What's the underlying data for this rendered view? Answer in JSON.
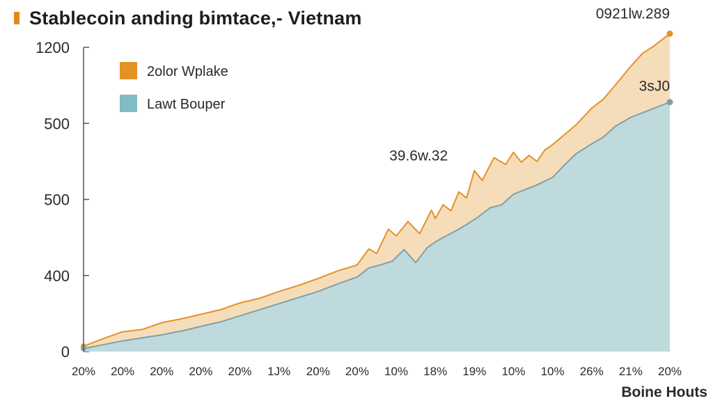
{
  "title": "Stablecoin anding bimtace,- Vietnam",
  "chart_data": {
    "type": "area",
    "title": "Stablecoin anding bimtace,- Vietnam",
    "xlabel": "Boine Houts",
    "ylabel": "",
    "y_tick_labels": [
      "0",
      "400",
      "500",
      "500",
      "1200"
    ],
    "x_tick_labels": [
      "20%",
      "20%",
      "20%",
      "20%",
      "20%",
      "1J%",
      "20%",
      "20%",
      "10%",
      "18%",
      "19%",
      "10%",
      "10%",
      "26%",
      "21%",
      "20%"
    ],
    "ylim": [
      0,
      4
    ],
    "legend": [
      {
        "name": "2olor Wplake",
        "color": "#e39226"
      },
      {
        "name": "Lawt Bouper",
        "color": "#7fbcc4"
      }
    ],
    "series": [
      {
        "name": "2olor Wplake",
        "color": "#e39226",
        "fill": "#f5d9b3",
        "x": [
          0,
          0.5,
          1,
          1.5,
          2,
          2.5,
          3,
          3.5,
          4,
          4.5,
          5,
          5.5,
          6,
          6.5,
          7,
          7.3,
          7.5,
          7.8,
          8,
          8.3,
          8.6,
          8.9,
          9,
          9.2,
          9.4,
          9.6,
          9.8,
          10,
          10.2,
          10.5,
          10.8,
          11,
          11.2,
          11.4,
          11.6,
          11.8,
          12,
          12.3,
          12.6,
          13,
          13.3,
          13.6,
          14,
          14.3,
          14.6,
          15
        ],
        "values": [
          0.07,
          0.17,
          0.26,
          0.29,
          0.38,
          0.43,
          0.49,
          0.55,
          0.64,
          0.7,
          0.79,
          0.87,
          0.96,
          1.06,
          1.14,
          1.35,
          1.29,
          1.61,
          1.52,
          1.71,
          1.55,
          1.86,
          1.75,
          1.93,
          1.85,
          2.1,
          2.02,
          2.38,
          2.25,
          2.55,
          2.46,
          2.62,
          2.49,
          2.58,
          2.5,
          2.65,
          2.72,
          2.85,
          2.98,
          3.2,
          3.32,
          3.5,
          3.75,
          3.92,
          4.02,
          4.18
        ]
      },
      {
        "name": "Lawt Bouper",
        "color": "#7fa0a6",
        "fill": "#bad9de",
        "x": [
          0,
          0.5,
          1,
          1.5,
          2,
          2.5,
          3,
          3.5,
          4,
          4.5,
          5,
          5.5,
          6,
          6.5,
          7,
          7.3,
          7.6,
          7.9,
          8.2,
          8.5,
          8.8,
          9,
          9.2,
          9.5,
          9.8,
          10.1,
          10.4,
          10.7,
          11,
          11.3,
          11.6,
          12,
          12.3,
          12.6,
          13,
          13.3,
          13.6,
          14,
          14.3,
          14.6,
          15
        ],
        "values": [
          0.04,
          0.09,
          0.14,
          0.18,
          0.22,
          0.27,
          0.33,
          0.39,
          0.47,
          0.55,
          0.63,
          0.71,
          0.79,
          0.89,
          0.98,
          1.1,
          1.14,
          1.19,
          1.34,
          1.17,
          1.37,
          1.44,
          1.5,
          1.58,
          1.67,
          1.77,
          1.89,
          1.93,
          2.07,
          2.13,
          2.19,
          2.29,
          2.45,
          2.6,
          2.73,
          2.82,
          2.96,
          3.08,
          3.14,
          3.2,
          3.28
        ]
      }
    ],
    "annotations": [
      {
        "text": "0921lw.289",
        "x": 15,
        "y": 4.18
      },
      {
        "text": "3sJ0",
        "x": 15,
        "y": 3.28
      },
      {
        "text": "39.6w.32",
        "x": 8.5,
        "y": 2.2
      }
    ]
  }
}
